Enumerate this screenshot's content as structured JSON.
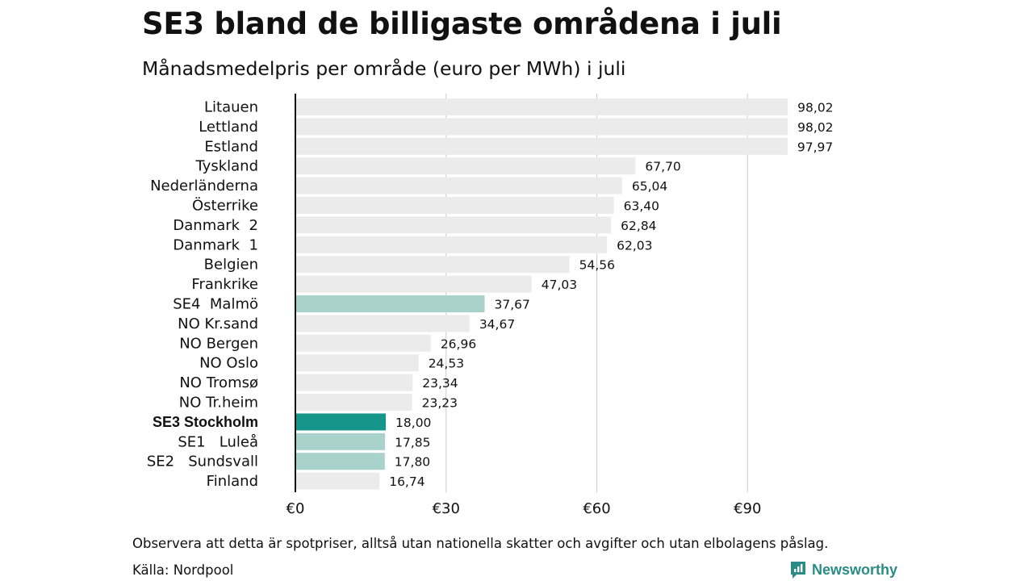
{
  "header": {
    "title": "SE3 bland de billigaste områdena i juli",
    "subtitle": "Månadsmedelpris per område (euro per MWh) i juli"
  },
  "footer": {
    "note": "Observera att detta är spotpriser, alltså utan nationella skatter och avgifter och utan elbolagens påslag.",
    "source": "Källa: Nordpool",
    "brand": "Newsworthy",
    "brand_icon": "newsworthy-logo-icon",
    "brand_color": "#2a8c84"
  },
  "colors": {
    "default_bar": "#ebebeb",
    "swedish_bar": "#a8d2cb",
    "highlight_bar": "#16968a",
    "grid": "#cccccc",
    "axis": "#111111"
  },
  "chart_data": {
    "type": "bar",
    "orientation": "horizontal",
    "title": "SE3 bland de billigaste områdena i juli",
    "subtitle": "Månadsmedelpris per område (euro per MWh) i juli",
    "xlabel": "",
    "ylabel": "",
    "xlim": [
      0,
      100
    ],
    "ticks": [
      0,
      30,
      60,
      90
    ],
    "tick_labels": [
      "€0",
      "€30",
      "€60",
      "€90"
    ],
    "grid": true,
    "legend": "none",
    "categories": [
      "Litauen",
      "Lettland",
      "Estland",
      "Tyskland",
      "Nederländerna",
      "Österrike",
      "Danmark  2",
      "Danmark  1",
      "Belgien",
      "Frankrike",
      "SE4  Malmö",
      "NO Kr.sand",
      "NO Bergen",
      "NO Oslo",
      "NO Tromsø",
      "NO Tr.heim",
      "SE3 Stockholm",
      "SE1   Luleå",
      "SE2   Sundsvall",
      "Finland"
    ],
    "values": [
      98.02,
      98.02,
      97.97,
      67.7,
      65.04,
      63.4,
      62.84,
      62.03,
      54.56,
      47.03,
      37.67,
      34.67,
      26.96,
      24.53,
      23.34,
      23.23,
      18.0,
      17.85,
      17.8,
      16.74
    ],
    "value_labels": [
      "98,02",
      "98,02",
      "97,97",
      "67,70",
      "65,04",
      "63,40",
      "62,84",
      "62,03",
      "54,56",
      "47,03",
      "37,67",
      "34,67",
      "26,96",
      "24,53",
      "23,34",
      "23,23",
      "18,00",
      "17,85",
      "17,80",
      "16,74"
    ],
    "bar_style": [
      "default",
      "default",
      "default",
      "default",
      "default",
      "default",
      "default",
      "default",
      "default",
      "default",
      "swedish",
      "default",
      "default",
      "default",
      "default",
      "default",
      "highlight",
      "swedish",
      "swedish",
      "default"
    ]
  }
}
